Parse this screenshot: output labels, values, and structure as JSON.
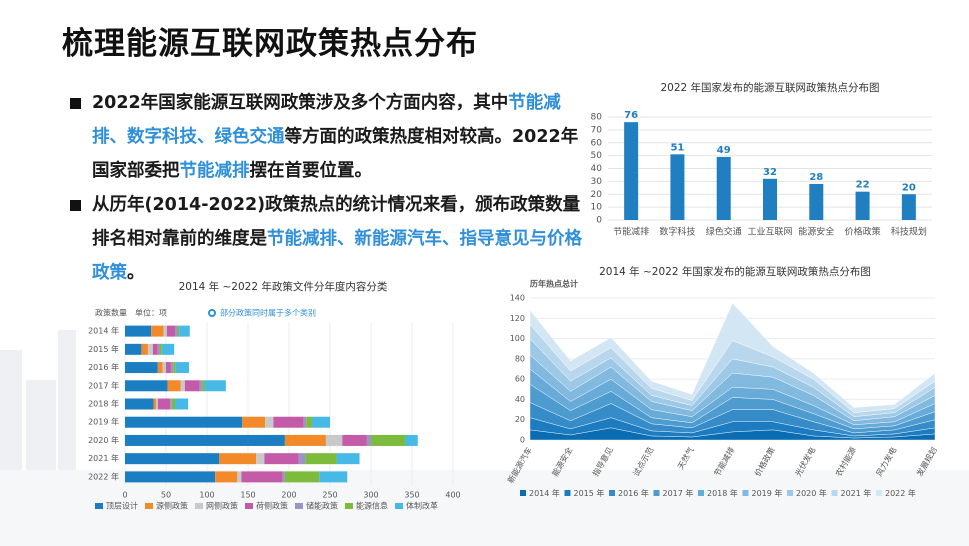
{
  "title": "梳理能源互联网政策热点分布",
  "bullets": [
    {
      "segments": [
        {
          "text": "2022年国家能源互联网政策涉及多个方面内容，其中",
          "accent": false
        },
        {
          "text": "节能减排、数字科技、绿色交通",
          "accent": true
        },
        {
          "text": "等方面的政策热度相对较高。2022年国家部委把",
          "accent": false
        },
        {
          "text": "节能减排",
          "accent": true
        },
        {
          "text": "摆在首要位置。",
          "accent": false
        }
      ]
    },
    {
      "segments": [
        {
          "text": "从历年(2014-2022)政策热点的统计情况来看，颁布政策数量排名相对靠前的维度是",
          "accent": false
        },
        {
          "text": "节能减排、新能源汽车、指导意见与价格政策",
          "accent": true
        },
        {
          "text": "。",
          "accent": false
        }
      ]
    }
  ],
  "chart_data": [
    {
      "type": "bar",
      "title": "2022 年国家发布的能源互联网政策热点分布图",
      "categories": [
        "节能减排",
        "数字科技",
        "绿色交通",
        "工业互联网",
        "能源安全",
        "价格政策",
        "科技规划"
      ],
      "values": [
        76,
        51,
        49,
        32,
        28,
        22,
        20
      ],
      "color": "#1f7fc0",
      "ylim": [
        0,
        80
      ],
      "yticks": [
        0,
        10,
        20,
        30,
        40,
        50,
        60,
        70,
        80
      ],
      "grid": true
    },
    {
      "type": "stacked_bar",
      "title": "2014 年 ~2022 年政策文件分年度内容分类",
      "unit_label": "政策数量　单位：项",
      "note": "部分政策同时属于多个类别",
      "categories": [
        "2014 年",
        "2015 年",
        "2016 年",
        "2017 年",
        "2018 年",
        "2019 年",
        "2020 年",
        "2021 年",
        "2022 年"
      ],
      "series": [
        {
          "name": "顶层设计",
          "color": "#1b7dc2",
          "values": [
            32,
            20,
            40,
            52,
            35,
            143,
            195,
            115,
            110
          ]
        },
        {
          "name": "源侧政策",
          "color": "#f28a2a",
          "values": [
            15,
            8,
            6,
            16,
            3,
            28,
            50,
            45,
            27
          ]
        },
        {
          "name": "网侧政策",
          "color": "#c9c9c9",
          "values": [
            4,
            6,
            4,
            5,
            2,
            10,
            20,
            10,
            5
          ]
        },
        {
          "name": "荷侧政策",
          "color": "#c45ba9",
          "values": [
            10,
            6,
            6,
            18,
            15,
            37,
            30,
            42,
            50
          ]
        },
        {
          "name": "储能政策",
          "color": "#9c93c6",
          "values": [
            3,
            2,
            3,
            3,
            2,
            3,
            5,
            8,
            3
          ]
        },
        {
          "name": "能源信息",
          "color": "#7dbb3c",
          "values": [
            2,
            3,
            3,
            3,
            4,
            7,
            42,
            38,
            42
          ]
        },
        {
          "name": "体制改革",
          "color": "#46b9e6",
          "values": [
            13,
            15,
            16,
            26,
            16,
            22,
            15,
            28,
            34
          ]
        }
      ],
      "xlim": [
        0,
        400
      ],
      "xticks": [
        0,
        50,
        100,
        150,
        200,
        250,
        300,
        350,
        400
      ],
      "grid": true
    },
    {
      "type": "stacked_area",
      "title": "2014 年 ~2022 年国家发布的能源互联网政策热点分布图",
      "y_label": "历年热点总计",
      "categories": [
        "新能源汽车",
        "能源安全",
        "指导意见",
        "试点示范",
        "天然气",
        "节能减排",
        "价格政策",
        "光伏发电",
        "农村能源",
        "风力发电",
        "发展规划"
      ],
      "series": [
        {
          "name": "2014 年",
          "color": "#0a6db4",
          "values": [
            10,
            5,
            12,
            4,
            3,
            8,
            10,
            4,
            2,
            3,
            6
          ]
        },
        {
          "name": "2015 年",
          "color": "#1d7cbf",
          "values": [
            12,
            6,
            10,
            5,
            4,
            10,
            8,
            6,
            2,
            3,
            6
          ]
        },
        {
          "name": "2016 年",
          "color": "#358cc8",
          "values": [
            15,
            8,
            14,
            7,
            5,
            12,
            12,
            8,
            3,
            4,
            8
          ]
        },
        {
          "name": "2017 年",
          "color": "#4e9bd0",
          "values": [
            18,
            10,
            12,
            6,
            5,
            12,
            10,
            8,
            4,
            4,
            8
          ]
        },
        {
          "name": "2018 年",
          "color": "#68aad8",
          "values": [
            15,
            9,
            12,
            8,
            6,
            10,
            10,
            8,
            4,
            4,
            8
          ]
        },
        {
          "name": "2019 年",
          "color": "#82b9df",
          "values": [
            14,
            10,
            12,
            8,
            6,
            14,
            12,
            10,
            4,
            5,
            8
          ]
        },
        {
          "name": "2020 年",
          "color": "#9dc8e6",
          "values": [
            16,
            10,
            9,
            6,
            5,
            14,
            10,
            8,
            4,
            4,
            8
          ]
        },
        {
          "name": "2021 年",
          "color": "#b8d7ed",
          "values": [
            14,
            10,
            10,
            7,
            5,
            18,
            10,
            8,
            4,
            4,
            6
          ]
        },
        {
          "name": "2022 年",
          "color": "#d3e6f4",
          "values": [
            14,
            10,
            10,
            7,
            6,
            37,
            10,
            6,
            5,
            4,
            8
          ]
        }
      ],
      "ylim": [
        0,
        140
      ],
      "yticks": [
        0,
        20,
        40,
        60,
        80,
        100,
        120,
        140
      ],
      "grid": true
    }
  ]
}
